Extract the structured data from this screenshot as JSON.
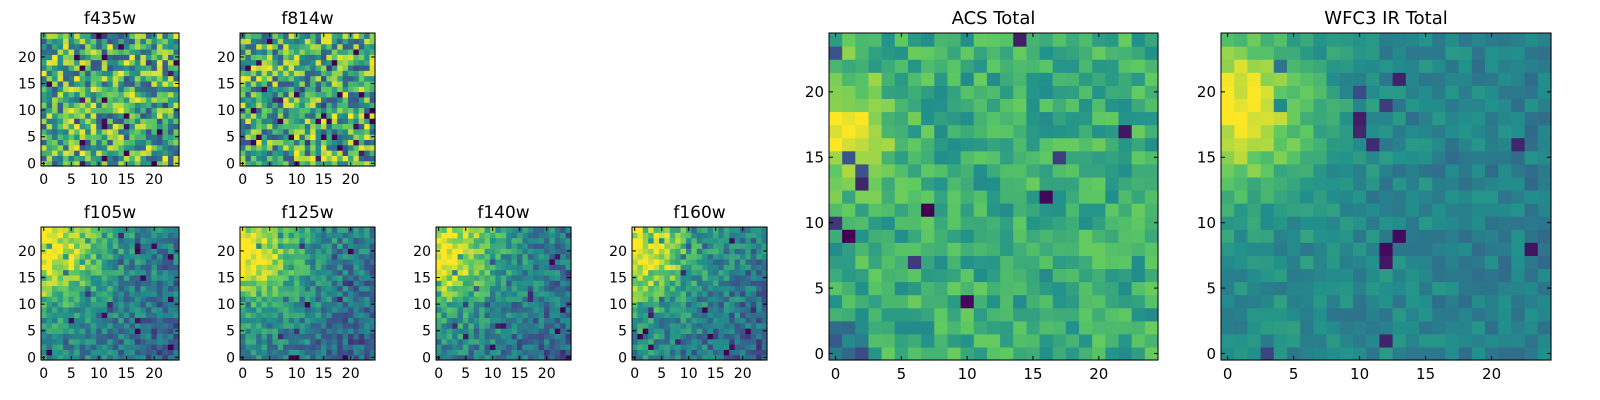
{
  "figure": {
    "colormap": "viridis",
    "colormap_stops": [
      "#440154",
      "#3b528b",
      "#21918c",
      "#5ec962",
      "#fde725"
    ],
    "grid": false
  },
  "chart_data": [
    {
      "type": "heatmap",
      "title": "f435w",
      "grid_size": 25,
      "xlim": [
        0,
        24
      ],
      "ylim": [
        0,
        24
      ],
      "xticks": [
        "0",
        "5",
        "10",
        "15",
        "20"
      ],
      "yticks": [
        "0",
        "5",
        "10",
        "15",
        "20"
      ],
      "colormap": "viridis",
      "pattern": "uniform noise, no clear gradient"
    },
    {
      "type": "heatmap",
      "title": "f814w",
      "grid_size": 25,
      "xlim": [
        0,
        24
      ],
      "ylim": [
        0,
        24
      ],
      "xticks": [
        "0",
        "5",
        "10",
        "15",
        "20"
      ],
      "yticks": [
        "0",
        "5",
        "10",
        "15",
        "20"
      ],
      "colormap": "viridis",
      "pattern": "uniform noise, no clear gradient"
    },
    {
      "type": "heatmap",
      "title": "f105w",
      "grid_size": 25,
      "xlim": [
        0,
        24
      ],
      "ylim": [
        0,
        24
      ],
      "xticks": [
        "0",
        "5",
        "10",
        "15",
        "20"
      ],
      "yticks": [
        "0",
        "5",
        "10",
        "15",
        "20"
      ],
      "colormap": "viridis",
      "pattern": "bright toward upper-left, darker toward lower-right"
    },
    {
      "type": "heatmap",
      "title": "f125w",
      "grid_size": 25,
      "xlim": [
        0,
        24
      ],
      "ylim": [
        0,
        24
      ],
      "xticks": [
        "0",
        "5",
        "10",
        "15",
        "20"
      ],
      "yticks": [
        "0",
        "5",
        "10",
        "15",
        "20"
      ],
      "colormap": "viridis",
      "pattern": "bright toward upper-left, darker toward lower-right"
    },
    {
      "type": "heatmap",
      "title": "f140w",
      "grid_size": 25,
      "xlim": [
        0,
        24
      ],
      "ylim": [
        0,
        24
      ],
      "xticks": [
        "0",
        "5",
        "10",
        "15",
        "20"
      ],
      "yticks": [
        "0",
        "5",
        "10",
        "15",
        "20"
      ],
      "colormap": "viridis",
      "pattern": "bright toward upper-left, darker toward lower-right"
    },
    {
      "type": "heatmap",
      "title": "f160w",
      "grid_size": 25,
      "xlim": [
        0,
        24
      ],
      "ylim": [
        0,
        24
      ],
      "xticks": [
        "0",
        "5",
        "10",
        "15",
        "20"
      ],
      "yticks": [
        "0",
        "5",
        "10",
        "15",
        "20"
      ],
      "colormap": "viridis",
      "pattern": "bright toward upper-left, darker toward lower-right"
    },
    {
      "type": "heatmap",
      "title": "ACS Total",
      "grid_size": 25,
      "xlim": [
        0,
        24
      ],
      "ylim": [
        0,
        24
      ],
      "xticks": [
        "0",
        "5",
        "10",
        "15",
        "20"
      ],
      "yticks": [
        "0",
        "5",
        "10",
        "15",
        "20"
      ],
      "colormap": "viridis",
      "pattern": "brightest at left edge around y=15-20, mostly green-yellow noise"
    },
    {
      "type": "heatmap",
      "title": "WFC3 IR Total",
      "grid_size": 25,
      "xlim": [
        0,
        24
      ],
      "ylim": [
        0,
        24
      ],
      "xticks": [
        "0",
        "5",
        "10",
        "15",
        "20"
      ],
      "yticks": [
        "0",
        "5",
        "10",
        "15",
        "20"
      ],
      "colormap": "viridis",
      "pattern": "bright toward upper-left, teal elsewhere"
    }
  ]
}
